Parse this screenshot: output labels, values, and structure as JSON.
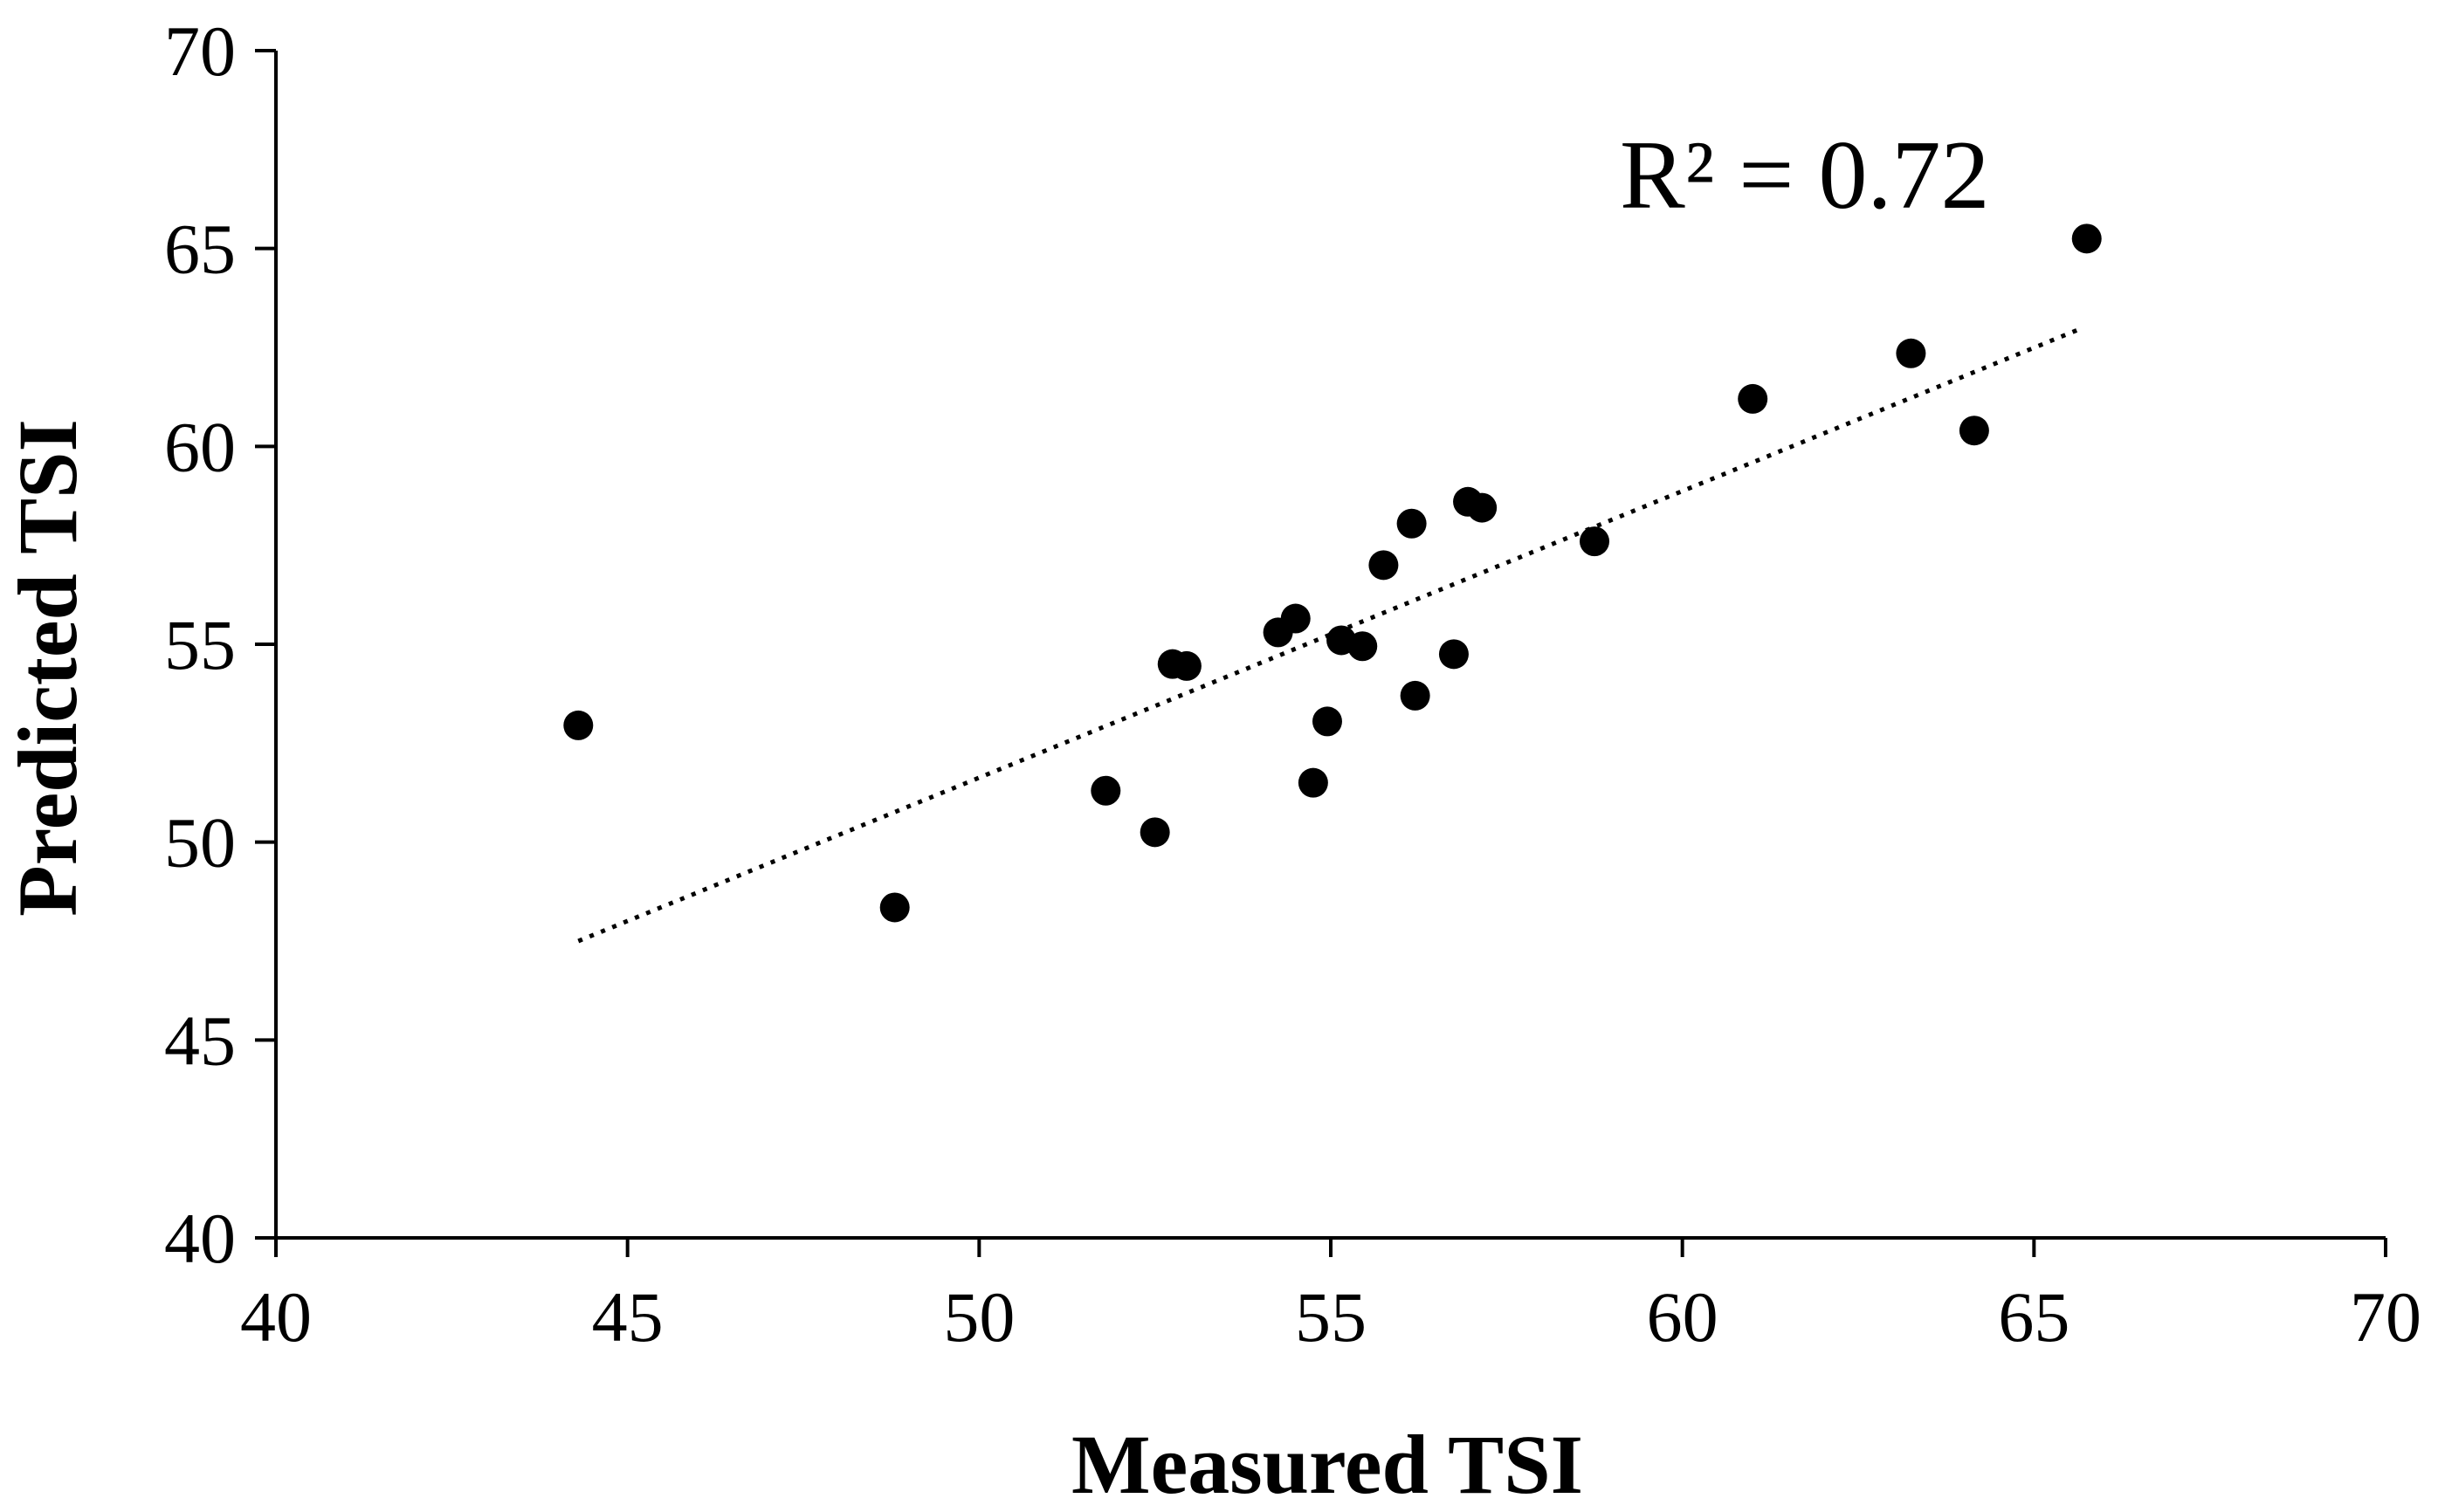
{
  "chart_data": {
    "type": "scatter",
    "title": "",
    "xlabel": "Measured TSI",
    "ylabel": "Predicted TSI",
    "xlim": [
      40,
      70
    ],
    "ylim": [
      40,
      70
    ],
    "xticks": [
      "40",
      "45",
      "50",
      "55",
      "60",
      "65",
      "70"
    ],
    "yticks": [
      "40",
      "45",
      "50",
      "55",
      "60",
      "65",
      "70"
    ],
    "grid": false,
    "annotation": "R² = 0.72",
    "trendline": {
      "style": "dotted",
      "x": [
        44.3,
        65.7
      ],
      "y": [
        47.5,
        63.0
      ]
    },
    "series": [
      {
        "name": "TSI",
        "x": [
          44.3,
          48.8,
          51.8,
          52.5,
          52.75,
          52.95,
          54.25,
          54.5,
          54.75,
          54.95,
          55.15,
          55.45,
          55.75,
          56.15,
          56.2,
          56.75,
          56.95,
          57.15,
          58.75,
          61.0,
          63.25,
          64.15,
          65.75
        ],
        "y": [
          52.95,
          48.35,
          51.3,
          50.25,
          54.5,
          54.45,
          55.3,
          55.65,
          51.5,
          53.05,
          55.1,
          54.95,
          57.0,
          58.05,
          53.7,
          54.75,
          58.6,
          58.45,
          57.6,
          61.2,
          62.35,
          60.4,
          65.25
        ]
      }
    ],
    "colors": {
      "marker": "#000000",
      "axis": "#000000",
      "background": "#ffffff"
    }
  }
}
